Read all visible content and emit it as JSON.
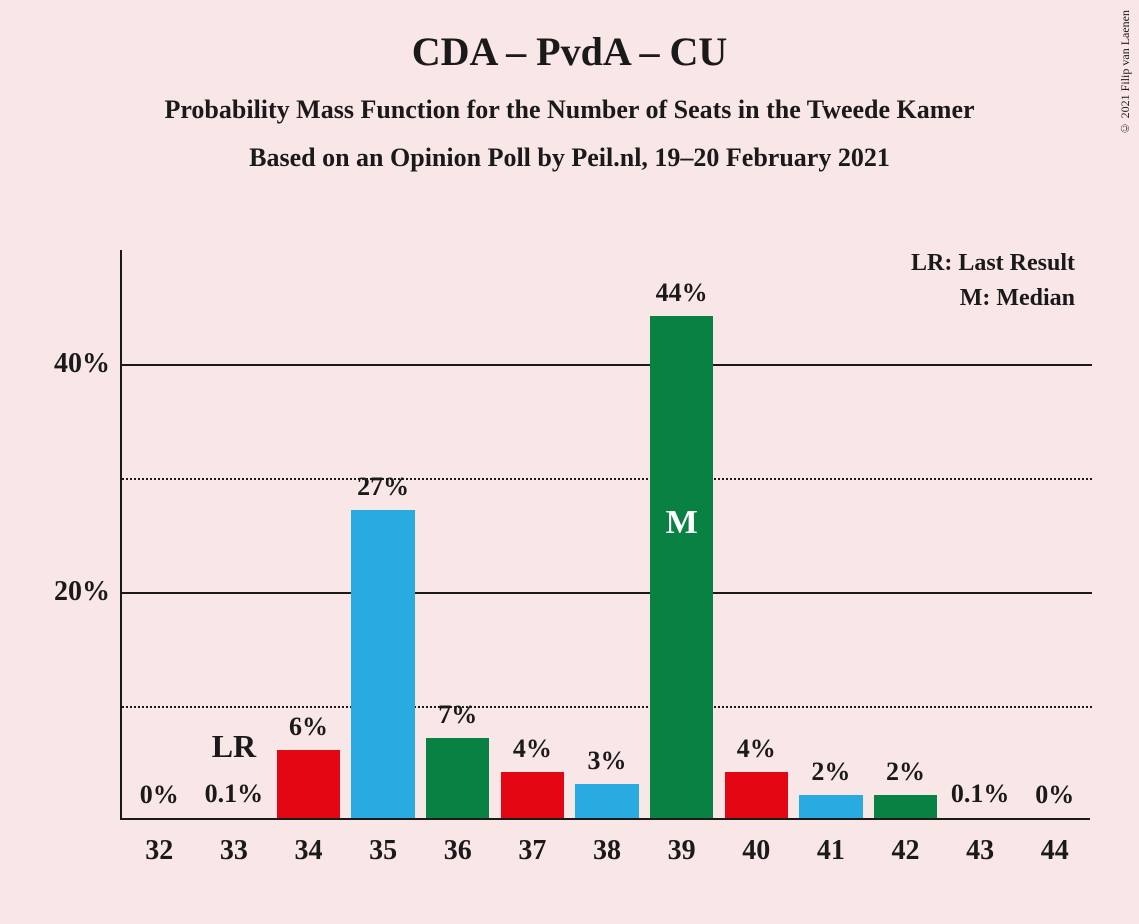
{
  "title": "CDA – PvdA – CU",
  "subtitle1": "Probability Mass Function for the Number of Seats in the Tweede Kamer",
  "subtitle2": "Based on an Opinion Poll by Peil.nl, 19–20 February 2021",
  "copyright": "© 2021 Filip van Laenen",
  "legend": {
    "lr": "LR: Last Result",
    "m": "M: Median"
  },
  "chart": {
    "type": "bar",
    "background_color": "#f9e6e6",
    "axis_color": "#1a1a1a",
    "grid_solid_color": "#1a1a1a",
    "grid_dotted_color": "#1a1a1a",
    "ylim": [
      0,
      50
    ],
    "yticks_major": [
      20,
      40
    ],
    "yticks_minor": [
      10,
      30
    ],
    "ytick_labels": {
      "20": "20%",
      "40": "40%"
    },
    "title_fontsize": 40,
    "subtitle_fontsize": 26,
    "axis_label_fontsize": 28,
    "bar_label_fontsize": 26,
    "legend_fontsize": 24,
    "median_label_fontsize": 34,
    "bar_width_ratio": 0.85,
    "categories": [
      32,
      33,
      34,
      35,
      36,
      37,
      38,
      39,
      40,
      41,
      42,
      43,
      44
    ],
    "values": [
      0,
      0.1,
      6,
      27,
      7,
      4,
      3,
      44,
      4,
      2,
      2,
      0.1,
      0
    ],
    "value_labels": [
      "0%",
      "0.1%",
      "6%",
      "27%",
      "7%",
      "4%",
      "3%",
      "44%",
      "4%",
      "2%",
      "2%",
      "0.1%",
      "0%"
    ],
    "bar_colors": [
      "#f9e6e6",
      "#f9e6e6",
      "#e40613",
      "#29abe2",
      "#088142",
      "#e40613",
      "#29abe2",
      "#088142",
      "#e40613",
      "#29abe2",
      "#088142",
      "#f9e6e6",
      "#f9e6e6"
    ],
    "lr_index": 1,
    "lr_text": "LR",
    "median_index": 7,
    "median_text": "M",
    "colors": {
      "red": "#e40613",
      "blue": "#29abe2",
      "green": "#088142"
    }
  }
}
